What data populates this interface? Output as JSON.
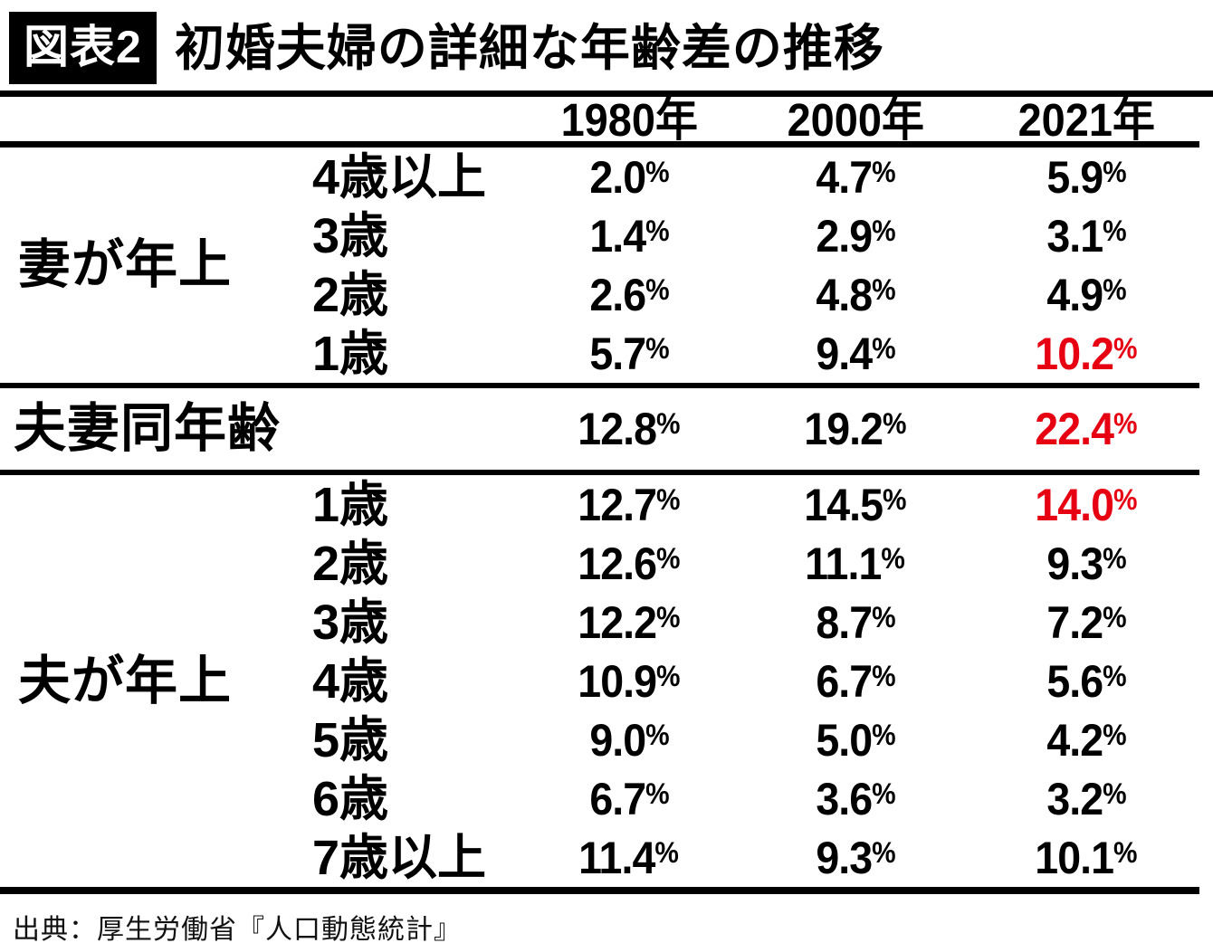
{
  "header": {
    "badge": "図表2",
    "title": "初婚夫婦の詳細な年齢差の推移"
  },
  "columns": [
    "1980年",
    "2000年",
    "2021年"
  ],
  "unit": "%",
  "sections": [
    {
      "label": "妻が年上",
      "rows": [
        {
          "age": "4歳以上",
          "v1980": "2.0",
          "v2000": "4.7",
          "v2021": "5.9"
        },
        {
          "age": "3歳",
          "v1980": "1.4",
          "v2000": "2.9",
          "v2021": "3.1"
        },
        {
          "age": "2歳",
          "v1980": "2.6",
          "v2000": "4.8",
          "v2021": "4.9"
        },
        {
          "age": "1歳",
          "v1980": "5.7",
          "v2000": "9.4",
          "v2021": "10.2"
        }
      ]
    },
    {
      "label": "夫妻同年齢",
      "rows": [
        {
          "age": "",
          "v1980": "12.8",
          "v2000": "19.2",
          "v2021": "22.4"
        }
      ]
    },
    {
      "label": "夫が年上",
      "rows": [
        {
          "age": "1歳",
          "v1980": "12.7",
          "v2000": "14.5",
          "v2021": "14.0"
        },
        {
          "age": "2歳",
          "v1980": "12.6",
          "v2000": "11.1",
          "v2021": "9.3"
        },
        {
          "age": "3歳",
          "v1980": "12.2",
          "v2000": "8.7",
          "v2021": "7.2"
        },
        {
          "age": "4歳",
          "v1980": "10.9",
          "v2000": "6.7",
          "v2021": "5.6"
        },
        {
          "age": "5歳",
          "v1980": "9.0",
          "v2000": "5.0",
          "v2021": "4.2"
        },
        {
          "age": "6歳",
          "v1980": "6.7",
          "v2000": "3.6",
          "v2021": "3.2"
        },
        {
          "age": "7歳以上",
          "v1980": "11.4",
          "v2000": "9.3",
          "v2021": "10.1"
        }
      ]
    }
  ],
  "source": "出典：厚生労働省『人口動態統計』",
  "colors": {
    "accent_red": "#e60012",
    "text": "#000000",
    "badge_bg": "#000000",
    "badge_fg": "#ffffff"
  },
  "chart_data": {
    "type": "table",
    "title": "初婚夫婦の詳細な年齢差の推移",
    "columns": [
      "1980年",
      "2000年",
      "2021年"
    ],
    "unit": "%",
    "groups": [
      {
        "group": "妻が年上",
        "rows": [
          {
            "label": "4歳以上",
            "values": [
              2.0,
              4.7,
              5.9
            ]
          },
          {
            "label": "3歳",
            "values": [
              1.4,
              2.9,
              3.1
            ]
          },
          {
            "label": "2歳",
            "values": [
              2.6,
              4.8,
              4.9
            ]
          },
          {
            "label": "1歳",
            "values": [
              5.7,
              9.4,
              10.2
            ]
          }
        ]
      },
      {
        "group": "夫妻同年齢",
        "rows": [
          {
            "label": "",
            "values": [
              12.8,
              19.2,
              22.4
            ]
          }
        ]
      },
      {
        "group": "夫が年上",
        "rows": [
          {
            "label": "1歳",
            "values": [
              12.7,
              14.5,
              14.0
            ]
          },
          {
            "label": "2歳",
            "values": [
              12.6,
              11.1,
              9.3
            ]
          },
          {
            "label": "3歳",
            "values": [
              12.2,
              8.7,
              7.2
            ]
          },
          {
            "label": "4歳",
            "values": [
              10.9,
              6.7,
              5.6
            ]
          },
          {
            "label": "5歳",
            "values": [
              9.0,
              5.0,
              4.2
            ]
          },
          {
            "label": "6歳",
            "values": [
              6.7,
              3.6,
              3.2
            ]
          },
          {
            "label": "7歳以上",
            "values": [
              11.4,
              9.3,
              10.1
            ]
          }
        ]
      }
    ],
    "highlighted_cells": [
      {
        "group": "妻が年上",
        "row": "1歳",
        "column": "2021年",
        "value": 10.2
      },
      {
        "group": "夫妻同年齢",
        "row": "",
        "column": "2021年",
        "value": 22.4
      },
      {
        "group": "夫が年上",
        "row": "1歳",
        "column": "2021年",
        "value": 14.0
      }
    ]
  }
}
